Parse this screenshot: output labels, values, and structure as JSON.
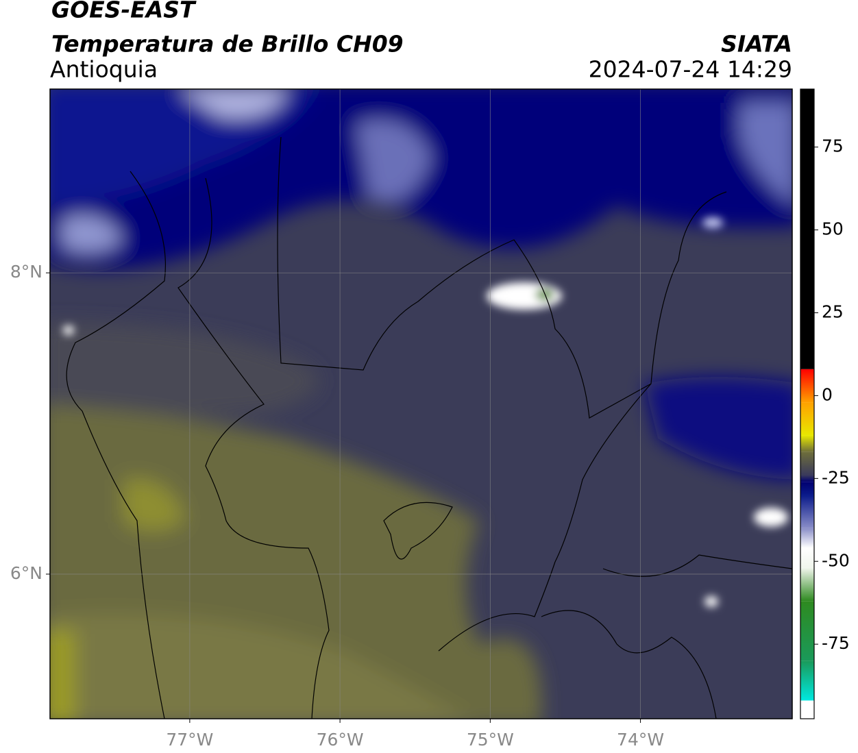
{
  "chart_data": {
    "type": "map",
    "title": "GOES-EAST",
    "subtitle": "Temperatura de Brillo CH09",
    "region": "Antioquia",
    "source": "SIATA",
    "datetime": "2024-07-24 14:29",
    "xlim": [
      -77.93,
      -72.99
    ],
    "ylim": [
      5.04,
      9.22
    ],
    "xticks": [
      {
        "value": -77,
        "label": "77°W"
      },
      {
        "value": -76,
        "label": "76°W"
      },
      {
        "value": -75,
        "label": "75°W"
      },
      {
        "value": -74,
        "label": "74°W"
      }
    ],
    "yticks": [
      {
        "value": 8,
        "label": "8°N"
      },
      {
        "value": 6,
        "label": "6°N"
      }
    ],
    "grid": true,
    "clim": [
      -97.5,
      92.5
    ],
    "cticks": [
      -75,
      -50,
      -25,
      0,
      25,
      50,
      75
    ],
    "colormap": [
      {
        "value": -97.5,
        "color": "#ffffff"
      },
      {
        "value": -92,
        "color": "#ffffff"
      },
      {
        "value": -92,
        "color": "#00e8e0"
      },
      {
        "value": -80,
        "color": "#1a9a5a"
      },
      {
        "value": -62,
        "color": "#2e8a20"
      },
      {
        "value": -52,
        "color": "#f0f5ec"
      },
      {
        "value": -46,
        "color": "#ffffff"
      },
      {
        "value": -40,
        "color": "#8a8ec8"
      },
      {
        "value": -30,
        "color": "#0a1a8a"
      },
      {
        "value": -26,
        "color": "#000070"
      },
      {
        "value": -24,
        "color": "#3a3a5c"
      },
      {
        "value": -17,
        "color": "#6e6e3a"
      },
      {
        "value": -12,
        "color": "#e8e800"
      },
      {
        "value": -2,
        "color": "#ffa000"
      },
      {
        "value": 8,
        "color": "#ff0000"
      },
      {
        "value": 8,
        "color": "#000000"
      },
      {
        "value": 92.5,
        "color": "#000000"
      }
    ]
  }
}
